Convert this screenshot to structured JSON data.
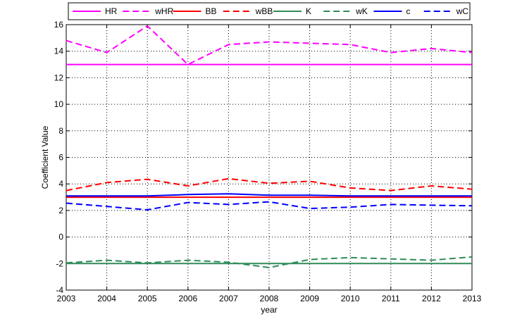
{
  "chart_data": {
    "type": "line",
    "title": "",
    "xlabel": "year",
    "ylabel": "Coefficient Value",
    "xlim": [
      2003,
      2013
    ],
    "ylim": [
      -4,
      16
    ],
    "grid": true,
    "legend_position": "top",
    "x": [
      2003,
      2004,
      2005,
      2006,
      2007,
      2008,
      2009,
      2010,
      2011,
      2012,
      2013
    ],
    "x_ticks": [
      "2003",
      "2004",
      "2005",
      "2006",
      "2007",
      "2008",
      "2009",
      "2010",
      "2011",
      "2012",
      "2013"
    ],
    "y_ticks": [
      "-4",
      "-2",
      "0",
      "2",
      "4",
      "6",
      "8",
      "10",
      "12",
      "14",
      "16"
    ],
    "series": [
      {
        "name": "HR",
        "color": "#ff00ff",
        "dash": "solid",
        "values": [
          13,
          13,
          13,
          13,
          13,
          13,
          13,
          13,
          13,
          13,
          13
        ]
      },
      {
        "name": "wHR",
        "color": "#ff00ff",
        "dash": "dashed",
        "values": [
          14.8,
          13.9,
          15.9,
          13.0,
          14.5,
          14.7,
          14.6,
          14.5,
          13.9,
          14.2,
          13.9
        ]
      },
      {
        "name": "BB",
        "color": "#ff0000",
        "dash": "solid",
        "values": [
          3.0,
          3.0,
          3.0,
          3.0,
          3.0,
          3.0,
          3.0,
          3.0,
          3.0,
          3.0,
          3.0
        ]
      },
      {
        "name": "wBB",
        "color": "#ff0000",
        "dash": "dashed",
        "values": [
          3.5,
          4.1,
          4.35,
          3.85,
          4.4,
          4.05,
          4.2,
          3.7,
          3.5,
          3.85,
          3.6
        ]
      },
      {
        "name": "K",
        "color": "#2e8b57",
        "dash": "solid",
        "values": [
          -2,
          -2,
          -2,
          -2,
          -2,
          -2,
          -2,
          -2,
          -2,
          -2,
          -2
        ]
      },
      {
        "name": "wK",
        "color": "#2e8b57",
        "dash": "dashed",
        "values": [
          -1.95,
          -1.75,
          -1.95,
          -1.75,
          -1.9,
          -2.3,
          -1.7,
          -1.55,
          -1.65,
          -1.75,
          -1.5
        ]
      },
      {
        "name": "c",
        "color": "#0000ff",
        "dash": "solid",
        "values": [
          3.1,
          3.1,
          3.1,
          3.2,
          3.25,
          3.15,
          3.15,
          3.1,
          3.1,
          3.1,
          3.1
        ]
      },
      {
        "name": "wC",
        "color": "#0000ff",
        "dash": "dashed",
        "values": [
          2.55,
          2.3,
          2.05,
          2.6,
          2.45,
          2.65,
          2.15,
          2.25,
          2.45,
          2.4,
          2.35
        ]
      }
    ]
  }
}
